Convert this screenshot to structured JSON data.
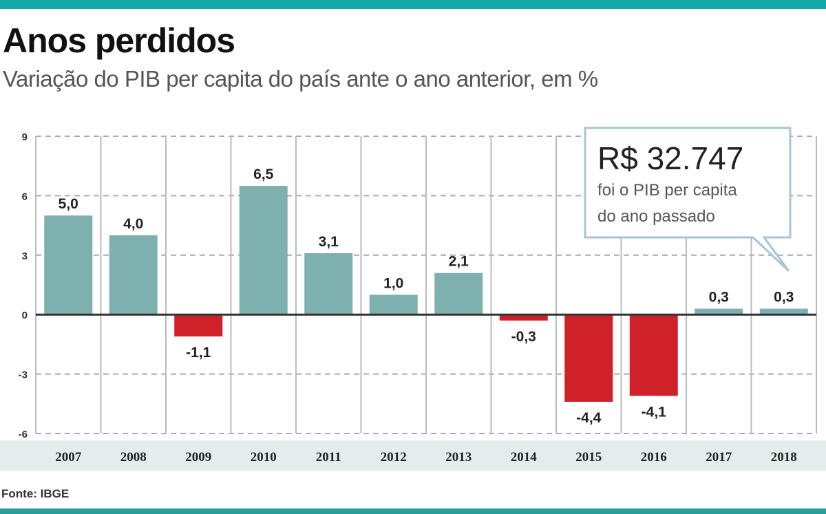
{
  "title": "Anos perdidos",
  "subtitle": "Variação do PIB per capita do país ante o ano anterior, em %",
  "source": "Fonte: IBGE",
  "callout": {
    "value": "R$ 32.747",
    "line1": "foi o PIB per capita",
    "line2": "do ano passado"
  },
  "colors": {
    "accent": "#15a9a6",
    "positive": "#7fb0b0",
    "negative": "#d0202a",
    "label_band": "#e4eded"
  },
  "chart_data": {
    "type": "bar",
    "title": "Anos perdidos",
    "subtitle": "Variação do PIB per capita do país ante o ano anterior, em %",
    "categories": [
      "2007",
      "2008",
      "2009",
      "2010",
      "2011",
      "2012",
      "2013",
      "2014",
      "2015",
      "2016",
      "2017",
      "2018"
    ],
    "values": [
      5.0,
      4.0,
      -1.1,
      6.5,
      3.1,
      1.0,
      2.1,
      -0.3,
      -4.4,
      -4.1,
      0.3,
      0.3
    ],
    "data_labels": [
      "5,0",
      "4,0",
      "-1,1",
      "6,5",
      "3,1",
      "1,0",
      "2,1",
      "-0,3",
      "-4,4",
      "-4,1",
      "0,3",
      "0,3"
    ],
    "yticks": [
      9,
      6,
      3,
      0,
      -3,
      -6
    ],
    "ytick_labels": [
      "9",
      "6",
      "3",
      "0",
      "-3",
      "-6"
    ],
    "ylim": [
      -6,
      9
    ],
    "grid": true,
    "legend": "none"
  }
}
